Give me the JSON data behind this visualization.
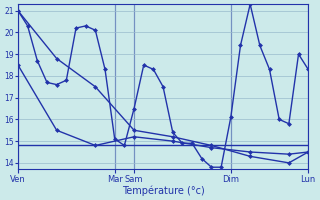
{
  "background_color": "#cceaea",
  "grid_color": "#99bbcc",
  "line_color": "#2233aa",
  "xlabel": "Température (°c)",
  "ylim": [
    13.7,
    21.3
  ],
  "yticks": [
    14,
    15,
    16,
    17,
    18,
    19,
    20,
    21
  ],
  "x_day_labels": [
    "Ven",
    "Mar",
    "Sam",
    "Dim",
    "Lun"
  ],
  "x_day_positions": [
    0,
    10,
    12,
    22,
    30
  ],
  "series_main_x": [
    0,
    1,
    2,
    3,
    4,
    5,
    6,
    7,
    8,
    9,
    10,
    11,
    12,
    13,
    14,
    15,
    16,
    17,
    18,
    19,
    20,
    21,
    22,
    23,
    24,
    25,
    26,
    27,
    28,
    29,
    30
  ],
  "series_main_y": [
    21.0,
    20.3,
    18.7,
    17.7,
    17.6,
    17.8,
    20.2,
    20.3,
    20.1,
    18.3,
    15.1,
    14.8,
    16.5,
    18.5,
    18.3,
    17.5,
    15.4,
    14.9,
    14.9,
    14.2,
    13.8,
    13.8,
    16.1,
    19.4,
    21.3,
    19.4,
    18.3,
    16.0,
    15.8,
    19.0,
    18.3
  ],
  "series_diag_x": [
    0,
    4,
    8,
    12,
    16,
    20,
    24,
    28,
    30
  ],
  "series_diag_y": [
    21.0,
    18.8,
    17.5,
    15.5,
    15.2,
    14.8,
    14.3,
    14.0,
    14.5
  ],
  "series_flat_x": [
    0,
    4,
    8,
    12,
    16,
    20,
    24,
    28,
    30
  ],
  "series_flat_y": [
    18.5,
    15.5,
    14.8,
    15.2,
    15.0,
    14.7,
    14.5,
    14.4,
    14.5
  ],
  "series_hline_x": [
    0,
    30
  ],
  "series_hline_y": [
    14.8,
    14.8
  ]
}
